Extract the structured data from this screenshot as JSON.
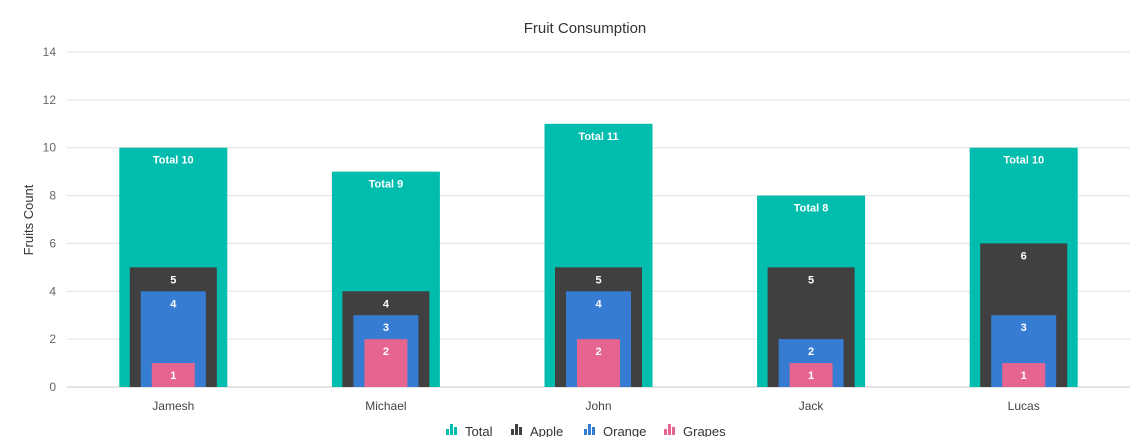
{
  "chart_data": {
    "type": "bar",
    "title": "Fruit Consumption",
    "ylabel": "Fruits Count",
    "xlabel": "",
    "ylim": [
      0,
      14
    ],
    "y_ticks": [
      "0",
      "2",
      "4",
      "6",
      "8",
      "10",
      "12",
      "14"
    ],
    "categories": [
      "Jamesh",
      "Michael",
      "John",
      "Jack",
      "Lucas"
    ],
    "grid": true,
    "legend_position": "bottom-center",
    "series": [
      {
        "name": "Total",
        "color": "#00bdae",
        "values": [
          10,
          9,
          11,
          8,
          10
        ],
        "labels": [
          "Total 10",
          "Total 9",
          "Total 11",
          "Total 8",
          "Total 10"
        ]
      },
      {
        "name": "Apple",
        "color": "#404041",
        "values": [
          5,
          4,
          5,
          5,
          6
        ],
        "labels": [
          "5",
          "4",
          "5",
          "5",
          "6"
        ]
      },
      {
        "name": "Orange",
        "color": "#357cd2",
        "values": [
          4,
          3,
          4,
          2,
          3
        ],
        "labels": [
          "4",
          "3",
          "4",
          "2",
          "3"
        ]
      },
      {
        "name": "Grapes",
        "color": "#e56590",
        "values": [
          1,
          2,
          2,
          1,
          1
        ],
        "labels": [
          "1",
          "2",
          "2",
          "1",
          "1"
        ]
      }
    ]
  }
}
